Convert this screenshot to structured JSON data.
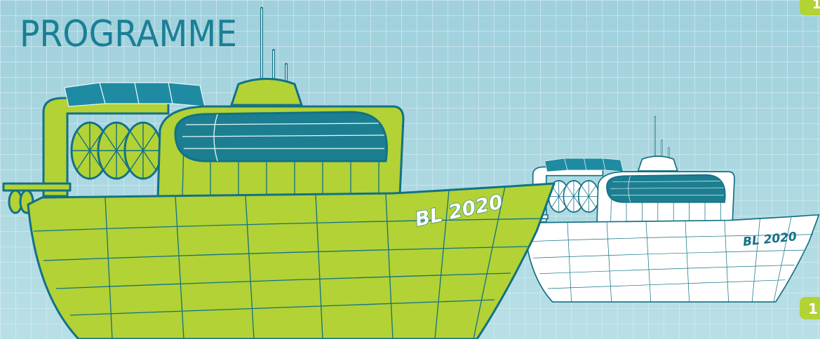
{
  "header": {
    "title": "PROGRAMME"
  },
  "boats": [
    {
      "label": "BL 2020"
    },
    {
      "label": "BL 2020"
    }
  ],
  "badges": [
    {
      "label": "1"
    },
    {
      "label": "1"
    }
  ]
}
